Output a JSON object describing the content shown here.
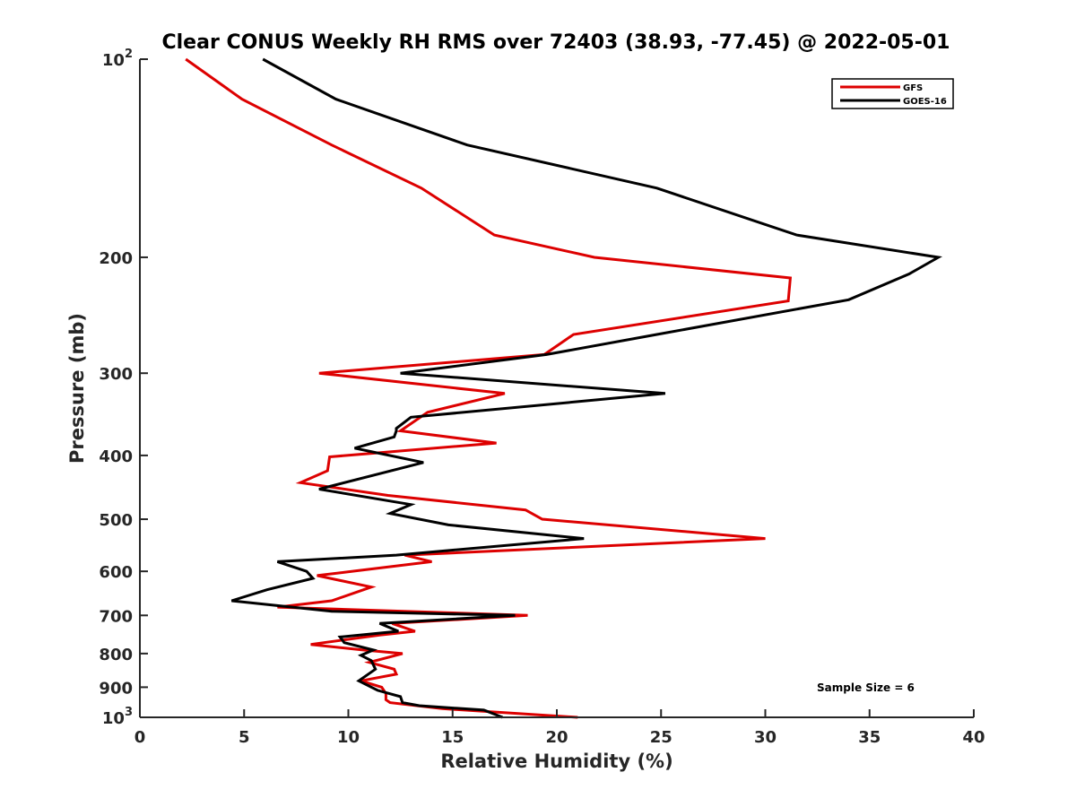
{
  "chart_data": {
    "type": "line",
    "title": "Clear CONUS Weekly RH RMS over 72403 (38.93, -77.45) @ 2022-05-01",
    "xlabel": "Relative Humidity (%)",
    "ylabel": "Pressure (mb)",
    "xlim": [
      0,
      40
    ],
    "ylim": [
      1000,
      100
    ],
    "yscale": "log",
    "x_ticks": [
      0,
      5,
      10,
      15,
      20,
      25,
      30,
      35,
      40
    ],
    "y_ticks": [
      1000,
      900,
      800,
      700,
      600,
      500,
      400,
      300,
      200,
      100
    ],
    "y_tick_labels": {
      "100": {
        "base": "10",
        "exp": "2"
      },
      "200": "200",
      "300": "300",
      "400": "400",
      "500": "500",
      "600": "600",
      "700": "700",
      "800": "800",
      "900": "900",
      "1000": {
        "base": "10",
        "exp": "3"
      }
    },
    "grid": false,
    "legend_position": "top-right",
    "annotation": "Sample Size = 6",
    "series": [
      {
        "name": "GFS",
        "color": "#dd0000",
        "points": [
          [
            2.2,
            100
          ],
          [
            4.9,
            115
          ],
          [
            9.2,
            135
          ],
          [
            13.5,
            157
          ],
          [
            17,
            185
          ],
          [
            21.8,
            200
          ],
          [
            31.2,
            215
          ],
          [
            31.1,
            233
          ],
          [
            20.8,
            262
          ],
          [
            19.4,
            281
          ],
          [
            8.6,
            300
          ],
          [
            17.5,
            322
          ],
          [
            13.8,
            344
          ],
          [
            12.5,
            367
          ],
          [
            17.1,
            383
          ],
          [
            9.1,
            402
          ],
          [
            9,
            422
          ],
          [
            7.7,
            440
          ],
          [
            11.9,
            460
          ],
          [
            18.5,
            484
          ],
          [
            19.3,
            500
          ],
          [
            30,
            535
          ],
          [
            12.7,
            567
          ],
          [
            14,
            580
          ],
          [
            8.5,
            609
          ],
          [
            11.1,
            634
          ],
          [
            9.2,
            665
          ],
          [
            6.6,
            680
          ],
          [
            18.6,
            700
          ],
          [
            12.1,
            720
          ],
          [
            13.2,
            740
          ],
          [
            11.5,
            750
          ],
          [
            8.2,
            775
          ],
          [
            10.7,
            790
          ],
          [
            12.6,
            800
          ],
          [
            11,
            825
          ],
          [
            12.2,
            845
          ],
          [
            12.3,
            860
          ],
          [
            10.6,
            880
          ],
          [
            11.6,
            900
          ],
          [
            11.8,
            920
          ],
          [
            11.8,
            940
          ],
          [
            12,
            950
          ],
          [
            14.5,
            970
          ],
          [
            21,
            1000
          ]
        ]
      },
      {
        "name": "GOES-16",
        "color": "#000000",
        "points": [
          [
            5.9,
            100
          ],
          [
            9.4,
            115
          ],
          [
            15.7,
            135
          ],
          [
            24.8,
            157
          ],
          [
            31.5,
            185
          ],
          [
            38.3,
            200
          ],
          [
            36.9,
            212
          ],
          [
            34,
            232
          ],
          [
            24.8,
            262
          ],
          [
            19.5,
            281
          ],
          [
            12.5,
            300
          ],
          [
            25.2,
            322
          ],
          [
            13,
            350
          ],
          [
            12.3,
            364
          ],
          [
            12.3,
            367
          ],
          [
            12.2,
            375
          ],
          [
            10.3,
            390
          ],
          [
            13.6,
            410
          ],
          [
            8.6,
            450
          ],
          [
            13,
            475
          ],
          [
            12,
            490
          ],
          [
            14.8,
            510
          ],
          [
            21.3,
            535
          ],
          [
            12.3,
            567
          ],
          [
            6.6,
            580
          ],
          [
            8,
            600
          ],
          [
            8.3,
            615
          ],
          [
            6.1,
            640
          ],
          [
            4.4,
            665
          ],
          [
            9.2,
            690
          ],
          [
            18,
            700
          ],
          [
            11.5,
            720
          ],
          [
            12.4,
            740
          ],
          [
            9.6,
            755
          ],
          [
            9.8,
            770
          ],
          [
            11.2,
            790
          ],
          [
            10.6,
            805
          ],
          [
            11.1,
            820
          ],
          [
            11.3,
            845
          ],
          [
            10.5,
            880
          ],
          [
            11.4,
            910
          ],
          [
            12.5,
            930
          ],
          [
            12.6,
            950
          ],
          [
            13.4,
            960
          ],
          [
            16.5,
            975
          ],
          [
            17.4,
            1000
          ]
        ]
      }
    ]
  }
}
